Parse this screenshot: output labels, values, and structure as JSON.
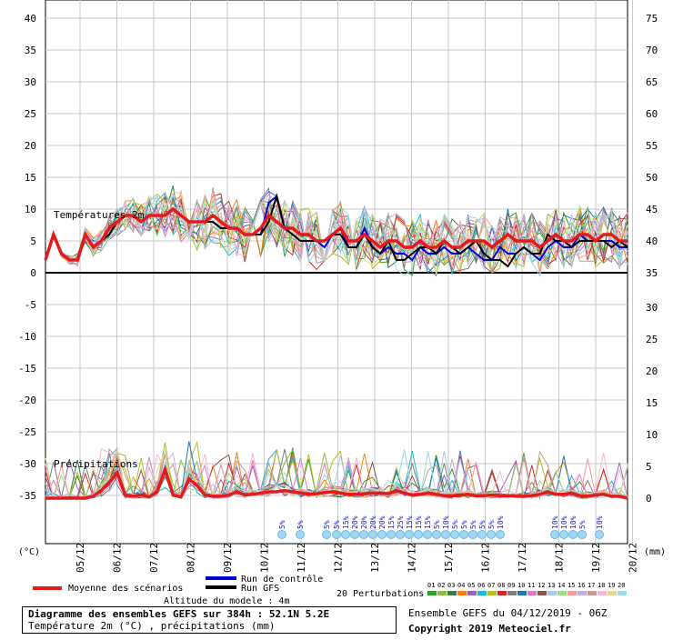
{
  "chart_data": {
    "type": "line",
    "x_dates": [
      "05/12",
      "06/12",
      "07/12",
      "08/12",
      "09/12",
      "10/12",
      "11/12",
      "12/12",
      "13/12",
      "14/12",
      "15/12",
      "16/12",
      "17/12",
      "18/12",
      "19/12",
      "20/12"
    ],
    "left_ticks": [
      "40",
      "35",
      "30",
      "25",
      "20",
      "15",
      "10",
      "5",
      "0",
      "-5",
      "-10",
      "-15",
      "-20",
      "-25",
      "-30",
      "-35"
    ],
    "right_ticks_temp": [
      "75",
      "70",
      "65",
      "60",
      "55",
      "50",
      "45",
      "40",
      "35"
    ],
    "right_ticks_precip": [
      "30",
      "25",
      "20",
      "15",
      "10",
      "5",
      "0"
    ],
    "left_unit": "(°C)",
    "right_unit": "(mm)",
    "temp_label": "Températures 2m",
    "precip_label": "Précipitations",
    "temp_mean": [
      2,
      6,
      3,
      2,
      2,
      6,
      4,
      5,
      7,
      8,
      9,
      9,
      8,
      9,
      9,
      9,
      10,
      9,
      8,
      8,
      8,
      9,
      8,
      7,
      7,
      6,
      6,
      7,
      9,
      8,
      7,
      7,
      6,
      6,
      5,
      5,
      6,
      7,
      5,
      5,
      6,
      5,
      4,
      5,
      5,
      4,
      4,
      5,
      4,
      4,
      5,
      4,
      4,
      5,
      5,
      5,
      4,
      5,
      6,
      5,
      5,
      5,
      4,
      5,
      6,
      5,
      5,
      6,
      6,
      5,
      6,
      6,
      5,
      5
    ],
    "temp_control": [
      2,
      6,
      3,
      2,
      2,
      6,
      4,
      5,
      6,
      8,
      9,
      9,
      8,
      9,
      9,
      9,
      10,
      9,
      8,
      8,
      8,
      8,
      7,
      7,
      7,
      6,
      6,
      6,
      11,
      12,
      7,
      6,
      5,
      5,
      5,
      4,
      6,
      7,
      4,
      4,
      7,
      4,
      3,
      4,
      3,
      3,
      2,
      4,
      3,
      3,
      4,
      3,
      3,
      4,
      3,
      2,
      2,
      4,
      3,
      3,
      4,
      3,
      2,
      4,
      5,
      4,
      4,
      6,
      5,
      5,
      5,
      5,
      4,
      4
    ],
    "temp_gfs": [
      2,
      6,
      3,
      2,
      2,
      6,
      4,
      5,
      6,
      8,
      9,
      9,
      8,
      9,
      9,
      9,
      10,
      9,
      8,
      8,
      8,
      8,
      7,
      7,
      7,
      6,
      6,
      6,
      8,
      12,
      7,
      6,
      5,
      5,
      5,
      5,
      6,
      6,
      4,
      4,
      6,
      4,
      3,
      5,
      2,
      2,
      3,
      4,
      4,
      3,
      5,
      4,
      3,
      4,
      5,
      3,
      2,
      2,
      1,
      3,
      4,
      3,
      3,
      6,
      5,
      5,
      4,
      5,
      5,
      5,
      5,
      4,
      5,
      4
    ],
    "precip_mean": [
      0,
      0,
      0,
      0,
      0,
      0,
      0.3,
      1.2,
      2.5,
      4,
      0.5,
      0.3,
      0.5,
      0.2,
      1,
      4.5,
      0.5,
      0.2,
      3,
      2,
      0.5,
      0.3,
      0.3,
      0.5,
      1,
      0.5,
      0.6,
      0.8,
      1,
      1,
      1.2,
      1,
      0.8,
      0.6,
      0.7,
      0.9,
      1,
      0.8,
      0.6,
      0.6,
      0.7,
      0.8,
      0.8,
      0.7,
      1.2,
      0.8,
      0.5,
      0.6,
      0.8,
      0.6,
      0.4,
      0.4,
      0.5,
      0.6,
      0.4,
      0.4,
      0.5,
      0.4,
      0.4,
      0.3,
      0.3,
      0.4,
      0.6,
      1,
      0.6,
      0.6,
      0.8,
      0.4,
      0.3,
      0.5,
      0.6,
      0.3,
      0.3,
      0
    ],
    "snow_labels": [
      "5%",
      "5%",
      "5%",
      "5%",
      "15%",
      "20%",
      "20%",
      "20%",
      "20%",
      "15%",
      "25%",
      "15%",
      "15%",
      "15%",
      "5%",
      "10%",
      "5%",
      "5%",
      "5%",
      "5%",
      "5%",
      "10%",
      "10%",
      "10%",
      "10%",
      "5%",
      "10%"
    ],
    "colors": {
      "mean": "#e41a1c",
      "control": "#0000dd",
      "gfs": "#000000",
      "grid": "#c8c8c8",
      "snow": "#9fd8f5"
    },
    "perturbation_colors": [
      "#2ca02c",
      "#8fbc3f",
      "#3a7d44",
      "#ff7f0e",
      "#9467bd",
      "#17becf",
      "#bcbd22",
      "#d62728",
      "#7f7f7f",
      "#1f77b4",
      "#e377c2",
      "#8c564b",
      "#aec7e8",
      "#98df8a",
      "#ff9896",
      "#c5b0d5",
      "#c49c94",
      "#f7b6d2",
      "#dbdb8d",
      "#9edae5"
    ]
  },
  "legend": {
    "mean": "Moyenne des scénarios",
    "control": "Run de contrôle",
    "gfs": "Run GFS",
    "perturbations": "20 Perturbations",
    "pert_numbers": [
      "01",
      "02",
      "03",
      "04",
      "05",
      "06",
      "07",
      "08",
      "09",
      "10",
      "11",
      "12",
      "13",
      "14",
      "15",
      "16",
      "17",
      "18",
      "19",
      "20"
    ]
  },
  "altitude": "Altitude du modele : 4m",
  "footer": {
    "title": "Diagramme des ensembles GEFS sur 384h : 52.1N 5.2E",
    "subtitle": "Température 2m (°C) , précipitations (mm)",
    "run": "Ensemble GEFS du 04/12/2019 - 06Z",
    "copyright": "Copyright 2019 Meteociel.fr"
  }
}
